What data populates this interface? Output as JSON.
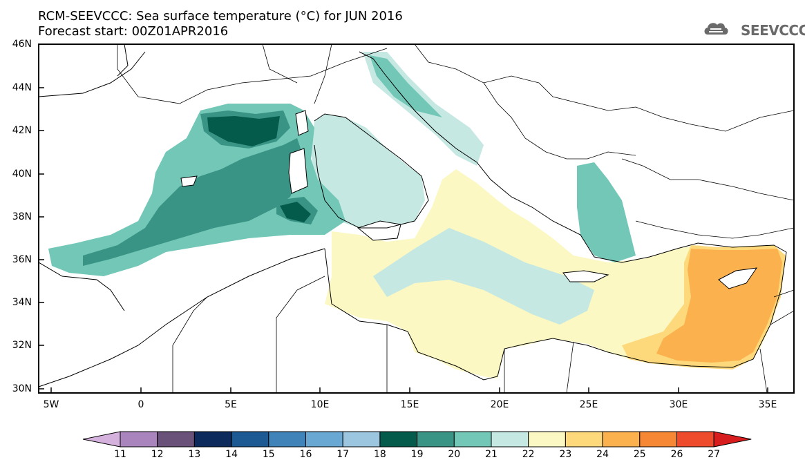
{
  "title_line1": "RCM-SEEVCCC: Sea surface temperature (°C) for JUN 2016",
  "title_line2": "Forecast start: 00Z01APR2016",
  "logo_text": "SEEVCCC",
  "logo_icon": "cloud-icon",
  "map": {
    "region": "Mediterranean Sea",
    "lon_range": [
      -5.5,
      36.5
    ],
    "lat_range": [
      29.9,
      46.0
    ],
    "lat_labels": [
      "46N",
      "44N",
      "42N",
      "40N",
      "38N",
      "36N",
      "34N",
      "32N",
      "30N"
    ],
    "lon_labels": [
      "5W",
      "0",
      "5E",
      "10E",
      "15E",
      "20E",
      "25E",
      "30E",
      "35E"
    ],
    "field": "sea surface temperature",
    "unit": "°C"
  },
  "colorbar": {
    "levels": [
      "11",
      "12",
      "13",
      "14",
      "15",
      "16",
      "17",
      "18",
      "19",
      "20",
      "21",
      "22",
      "23",
      "24",
      "25",
      "26",
      "27"
    ],
    "colors": [
      "#d5b2dd",
      "#aa85bd",
      "#69517a",
      "#0c2a5c",
      "#1d5a93",
      "#3f83b8",
      "#68a8d3",
      "#9cc6e0",
      "#055b4b",
      "#399486",
      "#72c7b7",
      "#c5e8e2",
      "#fbf8c4",
      "#fdd97b",
      "#fbb14e",
      "#f68735",
      "#ed4b2c",
      "#d71d1d"
    ]
  }
}
